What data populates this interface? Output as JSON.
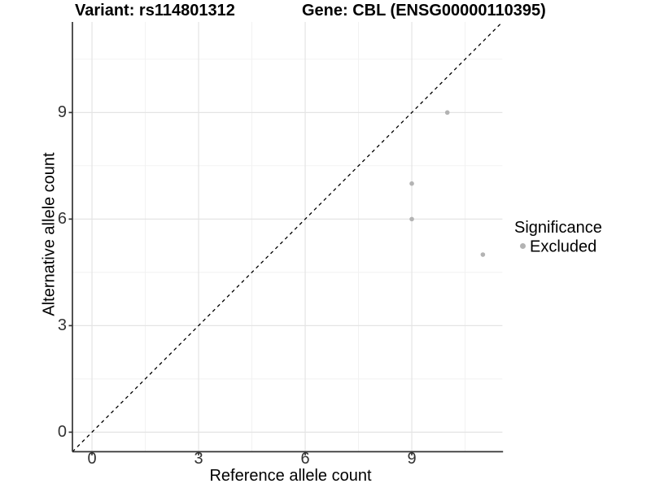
{
  "chart_data": {
    "type": "scatter",
    "title_left": "Variant: rs114801312",
    "title_right": "Gene: CBL (ENSG00000110395)",
    "xlabel": "Reference allele count",
    "ylabel": "Alternative allele count",
    "xlim": [
      -0.55,
      11.55
    ],
    "ylim": [
      -0.55,
      11.55
    ],
    "x_ticks": [
      0,
      3,
      6,
      9
    ],
    "y_ticks": [
      0,
      3,
      6,
      9
    ],
    "x_minor_gridlines": [
      1.5,
      4.5,
      7.5,
      10.5
    ],
    "y_minor_gridlines": [
      1.5,
      4.5,
      7.5,
      10.5
    ],
    "grid": "major+minor",
    "reference_line": {
      "type": "identity y=x",
      "style": "dashed",
      "color": "#000000"
    },
    "series": [
      {
        "name": "Excluded",
        "color": "#b3b3b3",
        "marker": "circle",
        "points": [
          {
            "x": 10,
            "y": 9
          },
          {
            "x": 9,
            "y": 7
          },
          {
            "x": 9,
            "y": 6
          },
          {
            "x": 11,
            "y": 5
          }
        ]
      }
    ],
    "legend": {
      "title": "Significance",
      "position": "right",
      "entries": [
        {
          "label": "Excluded",
          "color": "#b3b3b3"
        }
      ]
    }
  },
  "colors": {
    "background": "#ffffff",
    "grid_major": "#e4e4e4",
    "grid_minor": "#f1f1f1",
    "axis": "#333333",
    "point": "#b3b3b3",
    "reference_line": "#000000"
  }
}
